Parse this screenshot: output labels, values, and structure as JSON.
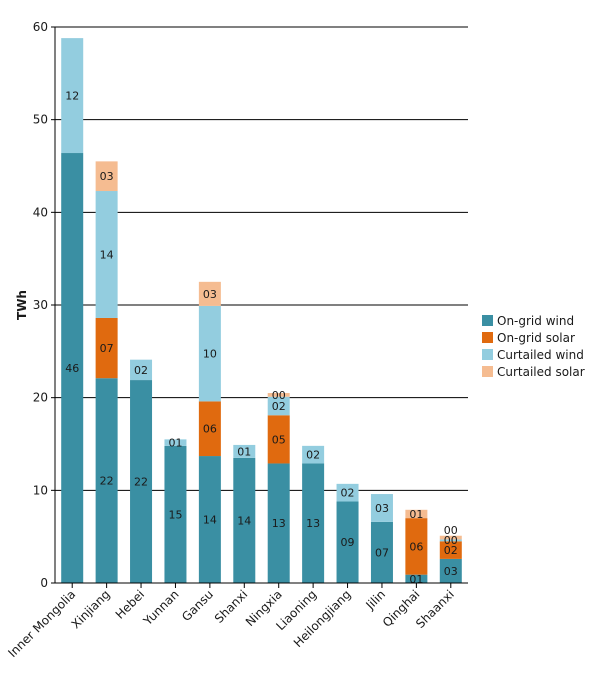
{
  "chart_data": {
    "type": "bar",
    "stacked": true,
    "title": "",
    "xlabel": "",
    "ylabel": "TWh",
    "ylim": [
      0,
      60
    ],
    "yticks": [
      0,
      10,
      20,
      30,
      40,
      50,
      60
    ],
    "grid": true,
    "legend_position": "right",
    "categories": [
      "Inner Mongolia",
      "Xinjiang",
      "Hebei",
      "Yunnan",
      "Gansu",
      "Shanxi",
      "Ningxia",
      "Liaoning",
      "Heilongjiang",
      "Jilin",
      "Qinghai",
      "Shaanxi"
    ],
    "series": [
      {
        "name": "On-grid wind",
        "color": "#3a8fa3",
        "values": [
          46.4,
          22.1,
          21.9,
          14.8,
          13.7,
          13.5,
          12.9,
          12.9,
          8.8,
          6.6,
          0.9,
          2.6
        ],
        "labels": [
          "46",
          "22",
          "22",
          "15",
          "14",
          "14",
          "13",
          "13",
          "09",
          "07",
          "01",
          "03"
        ]
      },
      {
        "name": "On-grid solar",
        "color": "#e06a0f",
        "values": [
          0,
          6.5,
          0,
          0,
          5.9,
          0,
          5.2,
          0,
          0,
          0,
          6.1,
          1.9
        ],
        "labels": [
          "",
          "07",
          "",
          "",
          "06",
          "",
          "05",
          "",
          "",
          "",
          "06",
          "02"
        ]
      },
      {
        "name": "Curtailed wind",
        "color": "#93cddf",
        "values": [
          12.4,
          13.7,
          2.2,
          0.7,
          10.3,
          1.4,
          2.0,
          1.9,
          1.9,
          3.0,
          0,
          0.2
        ],
        "labels": [
          "12",
          "14",
          "02",
          "01",
          "10",
          "01",
          "02",
          "02",
          "02",
          "03",
          "",
          "00"
        ]
      },
      {
        "name": "Curtailed solar",
        "color": "#f5bc91",
        "values": [
          0,
          3.2,
          0,
          0,
          2.6,
          0,
          0.4,
          0,
          0,
          0,
          0.9,
          0.4
        ],
        "labels": [
          "",
          "03",
          "",
          "",
          "03",
          "",
          "00",
          "",
          "",
          "",
          "01",
          "00"
        ]
      }
    ]
  }
}
